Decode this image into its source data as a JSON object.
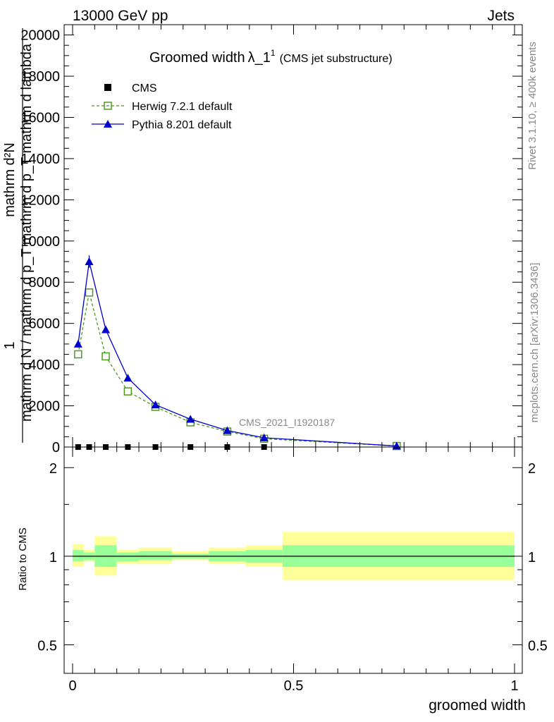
{
  "header": {
    "left": "13000 GeV pp",
    "right": "Jets"
  },
  "chart_data": [
    {
      "type": "line",
      "title_main": "Groomed width",
      "title_sym": "λ_1",
      "title_sup": "1",
      "title_sub": "(CMS jet substructure)",
      "ylabel": "1 / mathrm d N / mathrm d p_T mathrm d^2N / mathrm d p_T mathrm d lambda",
      "ylabel_lines": [
        "mathrm d²N",
        "1",
        "mathrm d N / mathrm d p_T mathrm d p_T mathrm d lambda"
      ],
      "xlim": [
        0,
        1
      ],
      "ylim": [
        0,
        20500
      ],
      "yticks": [
        0,
        2000,
        4000,
        6000,
        8000,
        10000,
        12000,
        14000,
        16000,
        18000,
        20000
      ],
      "ytick_labels": [
        "0",
        "2000",
        "4000",
        "6000",
        "8000",
        "10000",
        "12000",
        "14000",
        "16000",
        "18000",
        "20000"
      ],
      "watermark": "CMS_2021_I1920187",
      "series": [
        {
          "name": "CMS",
          "color": "#000000",
          "marker": "square",
          "x": [
            0.0125,
            0.0375,
            0.075,
            0.125,
            0.1875,
            0.2667,
            0.35,
            0.4333,
            0.7333
          ],
          "y": [
            0,
            0,
            0,
            0,
            0,
            0,
            0,
            0,
            0
          ]
        },
        {
          "name": "Herwig 7.2.1 default",
          "color": "#4b9b21",
          "marker": "open-square",
          "x": [
            0.0125,
            0.0375,
            0.075,
            0.125,
            0.1875,
            0.2667,
            0.35,
            0.4333,
            0.7333
          ],
          "y": [
            4500,
            7500,
            4400,
            2700,
            1950,
            1200,
            750,
            400,
            50
          ]
        },
        {
          "name": "Pythia 8.201 default",
          "color": "#0000cc",
          "marker": "triangle",
          "x": [
            0.0125,
            0.0375,
            0.075,
            0.125,
            0.1875,
            0.2667,
            0.35,
            0.4333,
            0.7333
          ],
          "y": [
            5000,
            9000,
            5700,
            3350,
            2050,
            1350,
            800,
            450,
            50
          ]
        }
      ]
    },
    {
      "type": "area",
      "ylabel": "Ratio to CMS",
      "xlabel": "groomed width",
      "xlim": [
        0,
        1
      ],
      "ylim": [
        0.4,
        2.35
      ],
      "scale": "log",
      "yticks": [
        0.5,
        1,
        2
      ],
      "ytick_labels": [
        "0.5",
        "1",
        "2"
      ],
      "xticks": [
        0,
        0.5,
        1
      ],
      "xtick_labels": [
        "0",
        "0.5",
        "1"
      ],
      "band_colors": {
        "inner": "#99ff99",
        "outer": "#ffff99"
      },
      "bins": [
        {
          "lo": 0.0,
          "hi": 0.025,
          "in_lo": 0.96,
          "in_hi": 1.05,
          "out_lo": 0.92,
          "out_hi": 1.1
        },
        {
          "lo": 0.025,
          "hi": 0.05,
          "in_lo": 0.97,
          "in_hi": 1.03,
          "out_lo": 0.96,
          "out_hi": 1.05
        },
        {
          "lo": 0.05,
          "hi": 0.1,
          "in_lo": 0.92,
          "in_hi": 1.09,
          "out_lo": 0.86,
          "out_hi": 1.17
        },
        {
          "lo": 0.1,
          "hi": 0.15,
          "in_lo": 0.96,
          "in_hi": 1.03,
          "out_lo": 0.94,
          "out_hi": 1.05
        },
        {
          "lo": 0.15,
          "hi": 0.225,
          "in_lo": 0.97,
          "in_hi": 1.04,
          "out_lo": 0.94,
          "out_hi": 1.07
        },
        {
          "lo": 0.225,
          "hi": 0.3083,
          "in_lo": 0.98,
          "in_hi": 1.02,
          "out_lo": 0.97,
          "out_hi": 1.04
        },
        {
          "lo": 0.3083,
          "hi": 0.3917,
          "in_lo": 0.96,
          "in_hi": 1.04,
          "out_lo": 0.94,
          "out_hi": 1.07
        },
        {
          "lo": 0.3917,
          "hi": 0.475,
          "in_lo": 0.95,
          "in_hi": 1.05,
          "out_lo": 0.92,
          "out_hi": 1.09
        },
        {
          "lo": 0.475,
          "hi": 1.0,
          "in_lo": 0.92,
          "in_hi": 1.09,
          "out_lo": 0.83,
          "out_hi": 1.21
        }
      ]
    }
  ],
  "side_text": {
    "upper": "Rivet 3.1.10, ≥ 400k events",
    "lower": "mcplots.cern.ch [arXiv:1306.3436]"
  }
}
